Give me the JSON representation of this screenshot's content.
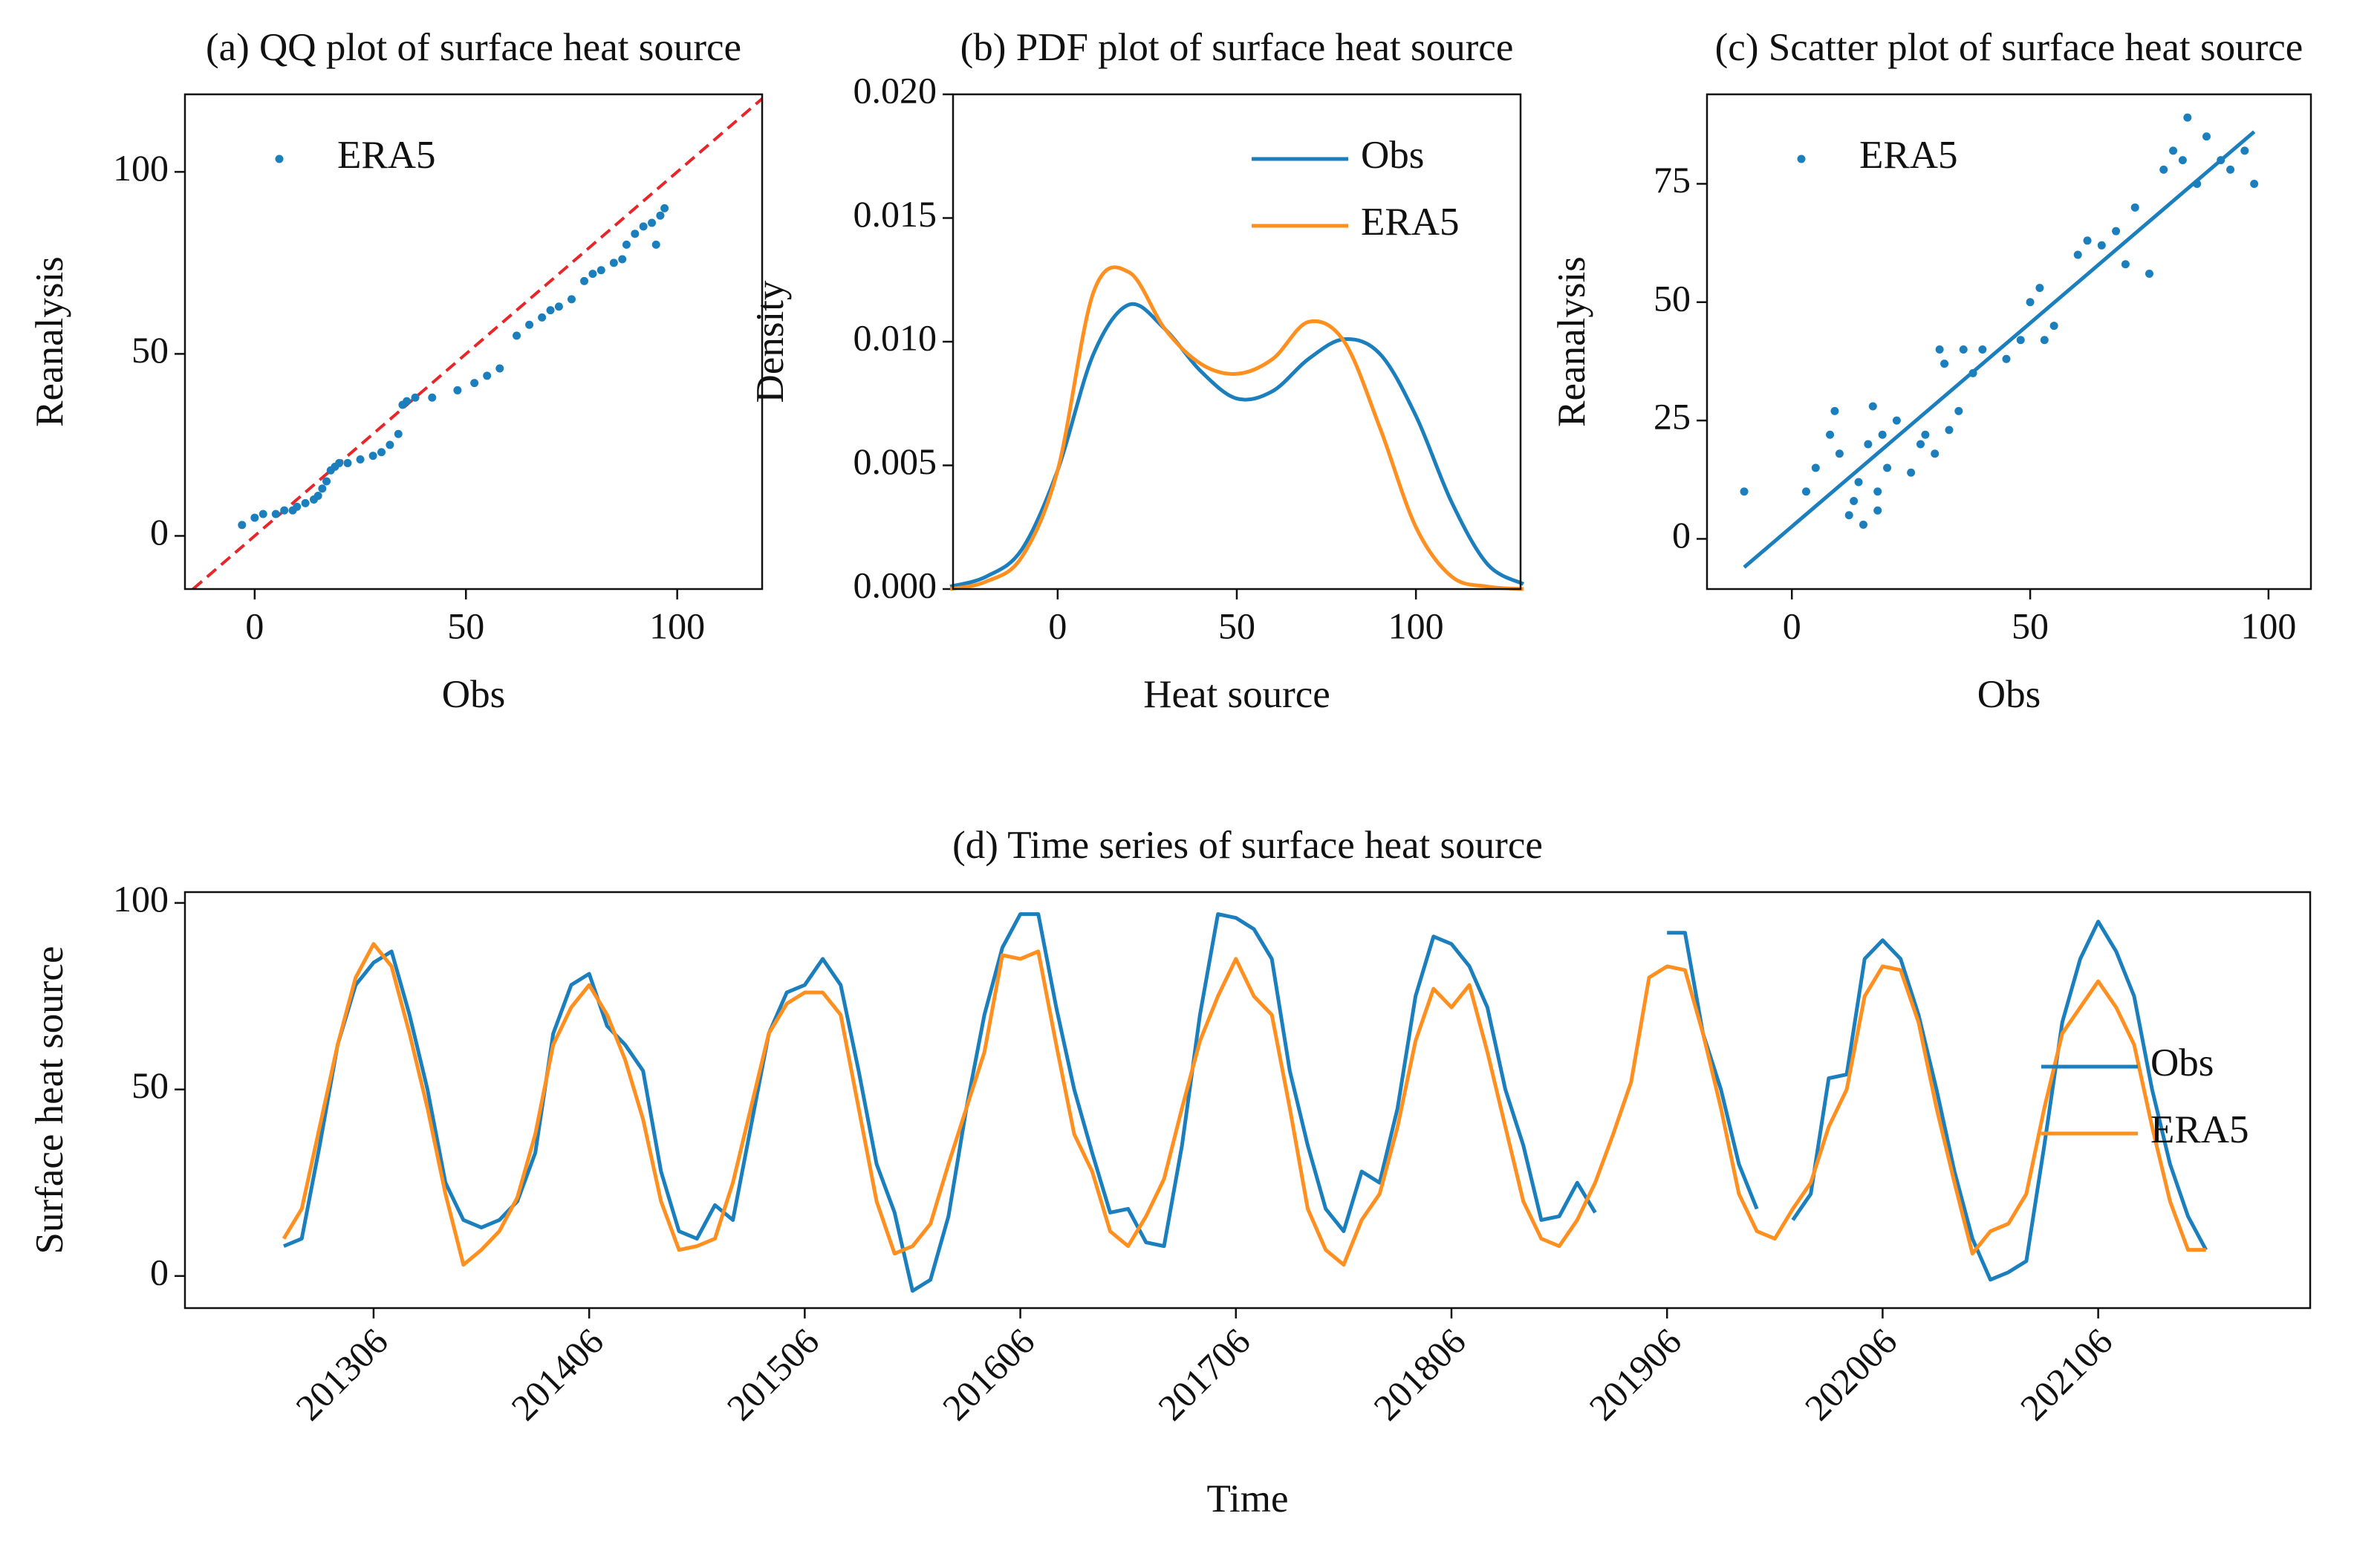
{
  "chart_data": [
    {
      "type": "scatter",
      "title": "(a) QQ plot of surface heat source",
      "xlabel": "Obs",
      "ylabel": "Reanalysis",
      "xlim": [
        -16.5,
        120.1
      ],
      "ylim": [
        -14.6,
        121.3
      ],
      "xticks": [
        0,
        50,
        100
      ],
      "yticks": [
        0,
        50,
        100
      ],
      "identity_line": true,
      "identity_color": "#e8262a",
      "legend": "upper left",
      "series": [
        {
          "name": "ERA5",
          "color": "#1b7fbd",
          "x": [
            -3,
            0,
            2,
            5,
            7,
            9,
            10,
            12,
            14,
            15,
            16,
            17,
            18,
            19,
            20,
            22,
            25,
            28,
            30,
            32,
            34,
            35,
            36,
            38,
            42,
            48,
            52,
            55,
            58,
            62,
            65,
            68,
            70,
            72,
            75,
            78,
            80,
            82,
            85,
            87,
            88,
            90,
            92,
            94,
            95,
            96,
            97
          ],
          "values": [
            3,
            5,
            6,
            6,
            7,
            7,
            8,
            9,
            10,
            11,
            13,
            15,
            18,
            19,
            20,
            20,
            21,
            22,
            23,
            25,
            28,
            36,
            37,
            38,
            38,
            40,
            42,
            44,
            46,
            55,
            58,
            60,
            62,
            63,
            65,
            70,
            72,
            73,
            75,
            76,
            80,
            83,
            85,
            86,
            80,
            88,
            90
          ]
        }
      ]
    },
    {
      "type": "line",
      "title": "(b) PDF plot of surface heat source",
      "xlabel": "Heat source",
      "ylabel": "Density",
      "xlim": [
        -29.2,
        129.2
      ],
      "ylim": [
        0,
        0.02
      ],
      "xticks": [
        0,
        50,
        100
      ],
      "yticks": [
        {
          "value": 0,
          "label": "0.000"
        },
        {
          "value": 0.005,
          "label": "0.005"
        },
        {
          "value": 0.01,
          "label": "0.010"
        },
        {
          "value": 0.015,
          "label": "0.015"
        },
        {
          "value": 0.02,
          "label": "0.020"
        }
      ],
      "smooth": true,
      "legend": "upper right",
      "x": [
        -30,
        -20,
        -10,
        0,
        10,
        20,
        30,
        40,
        50,
        60,
        70,
        80,
        90,
        100,
        110,
        120,
        130
      ],
      "series": [
        {
          "name": "Obs",
          "color": "#1b7fbd",
          "values": [
            0.0001,
            0.0005,
            0.0016,
            0.0048,
            0.0095,
            0.0115,
            0.0105,
            0.0088,
            0.0077,
            0.008,
            0.0093,
            0.0101,
            0.0095,
            0.007,
            0.0035,
            0.001,
            0.0002
          ]
        },
        {
          "name": "ERA5",
          "color": "#ff8f1f",
          "values": [
            0,
            0.0003,
            0.0013,
            0.0048,
            0.012,
            0.0128,
            0.0105,
            0.0091,
            0.0087,
            0.0093,
            0.0108,
            0.01,
            0.0065,
            0.0025,
            0.0005,
            0.0001,
            0
          ]
        }
      ]
    },
    {
      "type": "scatter",
      "title": "(c) Scatter plot of surface heat source",
      "xlabel": "Obs",
      "ylabel": "Reanalysis",
      "xlim": [
        -17.8,
        108.9
      ],
      "ylim": [
        -10.6,
        93.9
      ],
      "xticks": [
        0,
        50,
        100
      ],
      "yticks": [
        0,
        25,
        50,
        75
      ],
      "legend": "upper left",
      "fit": {
        "x": [
          -10,
          97
        ],
        "y": [
          -6,
          86
        ],
        "color": "#1b7fbd"
      },
      "series": [
        {
          "name": "ERA5",
          "color": "#1b7fbd",
          "x": [
            -10,
            3,
            5,
            8,
            9,
            10,
            12,
            13,
            14,
            15,
            16,
            17,
            18,
            18,
            19,
            20,
            22,
            25,
            27,
            28,
            30,
            31,
            32,
            33,
            35,
            36,
            38,
            40,
            45,
            48,
            50,
            52,
            53,
            55,
            60,
            62,
            65,
            68,
            70,
            72,
            75,
            78,
            80,
            82,
            83,
            85,
            87,
            90,
            92,
            95,
            97
          ],
          "values": [
            10,
            10,
            15,
            22,
            27,
            18,
            5,
            8,
            12,
            3,
            20,
            28,
            6,
            10,
            22,
            15,
            25,
            14,
            20,
            22,
            18,
            40,
            37,
            23,
            27,
            40,
            35,
            40,
            38,
            42,
            50,
            53,
            42,
            45,
            60,
            63,
            62,
            65,
            58,
            70,
            56,
            78,
            82,
            80,
            89,
            75,
            85,
            80,
            78,
            82,
            75
          ]
        }
      ]
    },
    {
      "type": "line",
      "title": "(d) Time series of surface heat source",
      "xlabel": "Time",
      "ylabel": "Surface heat source",
      "ylim": [
        -8.6,
        102.9
      ],
      "yticks": [
        0,
        50,
        100
      ],
      "legend": "center right",
      "categories": [
        null,
        null,
        null,
        null,
        null,
        "201306",
        null,
        null,
        null,
        null,
        null,
        null,
        null,
        null,
        null,
        null,
        null,
        "201406",
        null,
        null,
        null,
        null,
        null,
        null,
        null,
        null,
        null,
        null,
        null,
        "201506",
        null,
        null,
        null,
        null,
        null,
        null,
        null,
        null,
        null,
        null,
        null,
        "201606",
        null,
        null,
        null,
        null,
        null,
        null,
        null,
        null,
        null,
        null,
        null,
        "201706",
        null,
        null,
        null,
        null,
        null,
        null,
        null,
        null,
        null,
        null,
        null,
        "201806",
        null,
        null,
        null,
        null,
        null,
        null,
        null,
        null,
        null,
        null,
        null,
        "201906",
        null,
        null,
        null,
        null,
        null,
        null,
        null,
        null,
        null,
        null,
        null,
        "202006",
        null,
        null,
        null,
        null,
        null,
        null,
        null,
        null,
        null,
        null,
        null,
        "202106",
        null,
        null,
        null,
        null,
        null,
        null
      ],
      "series": [
        {
          "name": "Obs",
          "color": "#1b7fbd",
          "values": [
            8,
            10,
            35,
            62,
            78,
            84,
            87,
            70,
            50,
            25,
            15,
            13,
            15,
            20,
            33,
            65,
            78,
            81,
            67,
            62,
            55,
            28,
            12,
            10,
            19,
            15,
            40,
            65,
            76,
            78,
            85,
            78,
            55,
            30,
            17,
            -4,
            -1,
            16,
            45,
            70,
            88,
            97,
            97,
            72,
            50,
            33,
            17,
            18,
            9,
            8,
            35,
            70,
            97,
            96,
            93,
            85,
            55,
            35,
            18,
            12,
            28,
            25,
            45,
            75,
            91,
            89,
            83,
            72,
            50,
            35,
            15,
            16,
            25,
            17,
            null,
            null,
            null,
            92,
            92,
            65,
            50,
            30,
            18,
            null,
            15,
            22,
            53,
            54,
            85,
            90,
            85,
            70,
            50,
            28,
            10,
            -1,
            1,
            4,
            35,
            68,
            85,
            95,
            87,
            75,
            50,
            30,
            16,
            7
          ]
        },
        {
          "name": "ERA5",
          "color": "#ff8f1f",
          "values": [
            10,
            18,
            40,
            62,
            80,
            89,
            83,
            65,
            45,
            22,
            3,
            7,
            12,
            21,
            38,
            62,
            72,
            78,
            70,
            58,
            42,
            20,
            7,
            8,
            10,
            25,
            45,
            65,
            73,
            76,
            76,
            70,
            45,
            20,
            6,
            8,
            14,
            30,
            45,
            60,
            86,
            85,
            87,
            62,
            38,
            28,
            12,
            8,
            16,
            26,
            45,
            63,
            75,
            85,
            75,
            70,
            45,
            18,
            7,
            3,
            15,
            22,
            40,
            63,
            77,
            72,
            78,
            60,
            40,
            20,
            10,
            8,
            15,
            25,
            38,
            52,
            80,
            83,
            82,
            65,
            45,
            22,
            12,
            10,
            18,
            25,
            40,
            50,
            75,
            83,
            82,
            68,
            45,
            25,
            6,
            12,
            14,
            22,
            45,
            65,
            72,
            79,
            72,
            62,
            40,
            20,
            7,
            7
          ]
        }
      ]
    }
  ]
}
